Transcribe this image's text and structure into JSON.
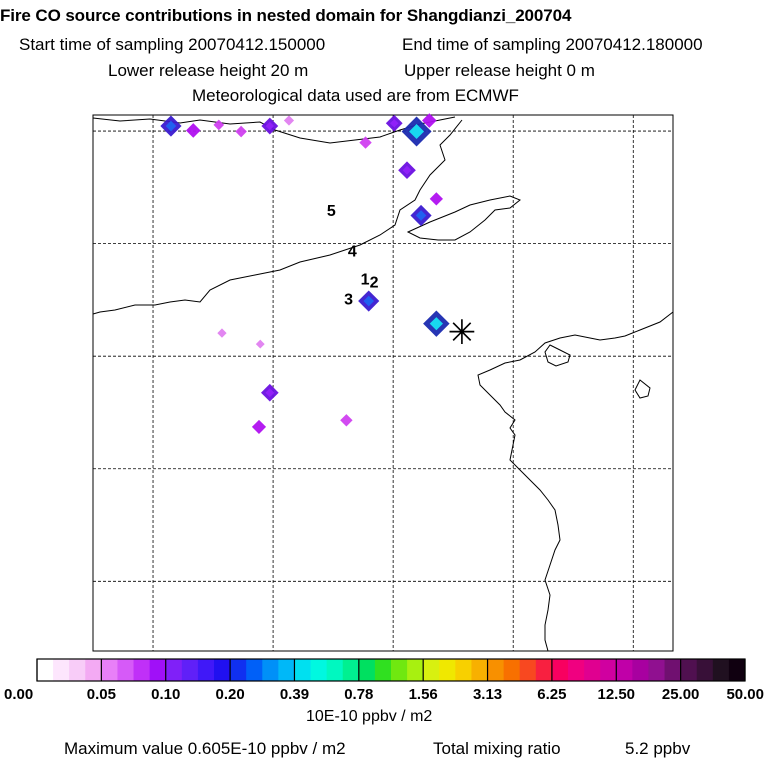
{
  "header": {
    "title": "Fire CO source contributions in nested domain for Shangdianzi_200704",
    "start_sampling": "Start time of sampling 20070412.150000",
    "end_sampling": "End time of sampling 20070412.180000",
    "lower_release": "Lower release height   20 m",
    "upper_release": "Upper release height    0 m",
    "met_data": "Meteorological data used are from ECMWF"
  },
  "chart_data": {
    "type": "heatmap",
    "title": "Fire CO source contributions in nested domain for Shangdianzi_200704",
    "grid": true,
    "grid_lines_x": [
      0.1,
      0.3,
      0.5,
      0.7,
      0.9
    ],
    "grid_lines_y": [
      0.025,
      0.225,
      0.425,
      0.625,
      0.825
    ],
    "receptor": {
      "x": 0.345,
      "y": 0.42,
      "symbol": "✳"
    },
    "trajectory_labels": [
      {
        "label": "1",
        "x": 0.418,
        "y": 0.305
      },
      {
        "label": "2",
        "x": 0.432,
        "y": 0.31
      },
      {
        "label": "3",
        "x": 0.392,
        "y": 0.34
      },
      {
        "label": "4",
        "x": 0.398,
        "y": 0.255
      },
      {
        "label": "5",
        "x": 0.365,
        "y": 0.183
      }
    ],
    "hotspots": [
      {
        "x": 0.13,
        "y": 0.02,
        "value": 0.3
      },
      {
        "x": 0.165,
        "y": 0.028,
        "value": 0.15
      },
      {
        "x": 0.205,
        "y": 0.018,
        "value": 0.06
      },
      {
        "x": 0.24,
        "y": 0.03,
        "value": 0.08
      },
      {
        "x": 0.285,
        "y": 0.02,
        "value": 0.2
      },
      {
        "x": 0.315,
        "y": 0.01,
        "value": 0.05
      },
      {
        "x": 0.435,
        "y": 0.05,
        "value": 0.1
      },
      {
        "x": 0.48,
        "y": 0.015,
        "value": 0.2
      },
      {
        "x": 0.515,
        "y": 0.03,
        "value": 0.5
      },
      {
        "x": 0.535,
        "y": 0.01,
        "value": 0.15
      },
      {
        "x": 0.5,
        "y": 0.1,
        "value": 0.22
      },
      {
        "x": 0.522,
        "y": 0.182,
        "value": 0.3
      },
      {
        "x": 0.546,
        "y": 0.152,
        "value": 0.12
      },
      {
        "x": 0.546,
        "y": 0.378,
        "value": 0.42
      },
      {
        "x": 0.44,
        "y": 0.337,
        "value": 0.3
      },
      {
        "x": 0.285,
        "y": 0.503,
        "value": 0.22
      },
      {
        "x": 0.268,
        "y": 0.565,
        "value": 0.14
      },
      {
        "x": 0.405,
        "y": 0.553,
        "value": 0.1
      },
      {
        "x": 0.21,
        "y": 0.395,
        "value": 0.03
      },
      {
        "x": 0.27,
        "y": 0.415,
        "value": 0.02
      }
    ],
    "colorbar": {
      "unit": "10E-10 ppbv / m2",
      "tick_labels": [
        "0.00",
        "0.05",
        "0.10",
        "0.20",
        "0.39",
        "0.78",
        "1.56",
        "3.13",
        "6.25",
        "12.50",
        "25.00",
        "50.00"
      ],
      "colors": [
        "#ffffff",
        "#fde6fd",
        "#f8ccf8",
        "#f3aaf3",
        "#e880f8",
        "#d65af8",
        "#c030f8",
        "#a010f8",
        "#8020f8",
        "#6020f8",
        "#4018f8",
        "#2010f0",
        "#1030f0",
        "#0060f8",
        "#0090f8",
        "#00b8f8",
        "#00e0f0",
        "#00f8e0",
        "#00f8c0",
        "#00f090",
        "#00e060",
        "#30e020",
        "#70e810",
        "#a8f010",
        "#d8f010",
        "#f0e800",
        "#f8d000",
        "#f8b000",
        "#f89000",
        "#f87000",
        "#f84820",
        "#f82040",
        "#f80060",
        "#f00080",
        "#e00090",
        "#d000a0",
        "#c000a8",
        "#a800a0",
        "#901090",
        "#701070",
        "#501050",
        "#381038",
        "#201020",
        "#100010"
      ]
    }
  },
  "footer": {
    "max_value": "Maximum value  0.605E-10 ppbv / m2",
    "total_label": "Total mixing ratio",
    "total_value": "5.2 ppbv"
  }
}
